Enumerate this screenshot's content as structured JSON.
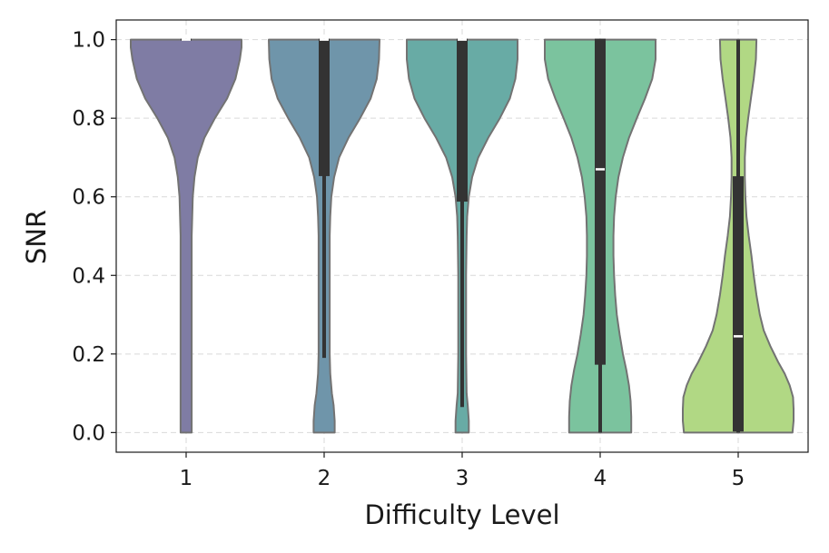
{
  "chart_data": {
    "type": "violin",
    "title": "",
    "xlabel": "Difficulty Level",
    "ylabel": "SNR",
    "ylim": [
      -0.05,
      1.05
    ],
    "yticks": [
      "0.0",
      "0.2",
      "0.4",
      "0.6",
      "0.8",
      "1.0"
    ],
    "grid": true,
    "categories": [
      "1",
      "2",
      "3",
      "4",
      "5"
    ],
    "colors": [
      "#7f7ca4",
      "#6f95aa",
      "#68aba5",
      "#7bc39e",
      "#b1d884"
    ],
    "edge_color": "#737373",
    "box_color": "#333333",
    "median_color": "#ffffff",
    "series": [
      {
        "category": "1",
        "median": 1.0,
        "q1": 1.0,
        "q3": 1.0,
        "whisker_low": 1.0,
        "whisker_high": 1.0,
        "density": [
          [
            0.0,
            0.1
          ],
          [
            0.05,
            0.1
          ],
          [
            0.1,
            0.1
          ],
          [
            0.2,
            0.1
          ],
          [
            0.3,
            0.1
          ],
          [
            0.4,
            0.1
          ],
          [
            0.5,
            0.1
          ],
          [
            0.55,
            0.11
          ],
          [
            0.6,
            0.12
          ],
          [
            0.65,
            0.15
          ],
          [
            0.7,
            0.21
          ],
          [
            0.75,
            0.33
          ],
          [
            0.8,
            0.52
          ],
          [
            0.85,
            0.74
          ],
          [
            0.9,
            0.89
          ],
          [
            0.95,
            0.97
          ],
          [
            0.98,
            1.0
          ],
          [
            1.0,
            1.0
          ]
        ]
      },
      {
        "category": "2",
        "median": 1.0,
        "q1": 0.655,
        "q3": 1.0,
        "whisker_low": 0.19,
        "whisker_high": 1.0,
        "density": [
          [
            0.0,
            0.19
          ],
          [
            0.03,
            0.19
          ],
          [
            0.07,
            0.17
          ],
          [
            0.1,
            0.14
          ],
          [
            0.15,
            0.11
          ],
          [
            0.2,
            0.1
          ],
          [
            0.3,
            0.1
          ],
          [
            0.4,
            0.1
          ],
          [
            0.5,
            0.1
          ],
          [
            0.55,
            0.11
          ],
          [
            0.6,
            0.13
          ],
          [
            0.65,
            0.18
          ],
          [
            0.7,
            0.27
          ],
          [
            0.75,
            0.44
          ],
          [
            0.8,
            0.65
          ],
          [
            0.85,
            0.84
          ],
          [
            0.9,
            0.95
          ],
          [
            0.95,
            0.99
          ],
          [
            1.0,
            1.0
          ]
        ]
      },
      {
        "category": "3",
        "median": 1.0,
        "q1": 0.59,
        "q3": 1.0,
        "whisker_low": 0.065,
        "whisker_high": 1.0,
        "density": [
          [
            0.0,
            0.12
          ],
          [
            0.03,
            0.12
          ],
          [
            0.07,
            0.1
          ],
          [
            0.1,
            0.08
          ],
          [
            0.2,
            0.07
          ],
          [
            0.3,
            0.07
          ],
          [
            0.4,
            0.07
          ],
          [
            0.5,
            0.08
          ],
          [
            0.55,
            0.09
          ],
          [
            0.6,
            0.12
          ],
          [
            0.65,
            0.18
          ],
          [
            0.7,
            0.29
          ],
          [
            0.75,
            0.47
          ],
          [
            0.8,
            0.68
          ],
          [
            0.85,
            0.86
          ],
          [
            0.9,
            0.96
          ],
          [
            0.95,
            1.0
          ],
          [
            1.0,
            1.0
          ]
        ]
      },
      {
        "category": "4",
        "median": 0.67,
        "q1": 0.175,
        "q3": 1.0,
        "whisker_low": 0.0,
        "whisker_high": 1.0,
        "density": [
          [
            0.0,
            0.56
          ],
          [
            0.04,
            0.56
          ],
          [
            0.08,
            0.55
          ],
          [
            0.12,
            0.52
          ],
          [
            0.16,
            0.47
          ],
          [
            0.2,
            0.41
          ],
          [
            0.25,
            0.35
          ],
          [
            0.3,
            0.3
          ],
          [
            0.35,
            0.27
          ],
          [
            0.4,
            0.25
          ],
          [
            0.45,
            0.24
          ],
          [
            0.5,
            0.24
          ],
          [
            0.55,
            0.25
          ],
          [
            0.6,
            0.28
          ],
          [
            0.65,
            0.33
          ],
          [
            0.7,
            0.41
          ],
          [
            0.75,
            0.52
          ],
          [
            0.8,
            0.66
          ],
          [
            0.85,
            0.81
          ],
          [
            0.9,
            0.94
          ],
          [
            0.95,
            1.0
          ],
          [
            1.0,
            1.0
          ]
        ]
      },
      {
        "category": "5",
        "median": 0.245,
        "q1": 0.005,
        "q3": 0.65,
        "whisker_low": 0.0,
        "whisker_high": 1.0,
        "density": [
          [
            0.0,
            0.98
          ],
          [
            0.03,
            1.0
          ],
          [
            0.06,
            1.0
          ],
          [
            0.09,
            0.99
          ],
          [
            0.12,
            0.93
          ],
          [
            0.15,
            0.84
          ],
          [
            0.18,
            0.72
          ],
          [
            0.22,
            0.58
          ],
          [
            0.26,
            0.46
          ],
          [
            0.3,
            0.39
          ],
          [
            0.35,
            0.33
          ],
          [
            0.4,
            0.28
          ],
          [
            0.45,
            0.24
          ],
          [
            0.5,
            0.19
          ],
          [
            0.55,
            0.15
          ],
          [
            0.6,
            0.13
          ],
          [
            0.65,
            0.12
          ],
          [
            0.7,
            0.12
          ],
          [
            0.75,
            0.14
          ],
          [
            0.8,
            0.18
          ],
          [
            0.85,
            0.23
          ],
          [
            0.9,
            0.28
          ],
          [
            0.95,
            0.32
          ],
          [
            1.0,
            0.33
          ]
        ]
      }
    ]
  }
}
